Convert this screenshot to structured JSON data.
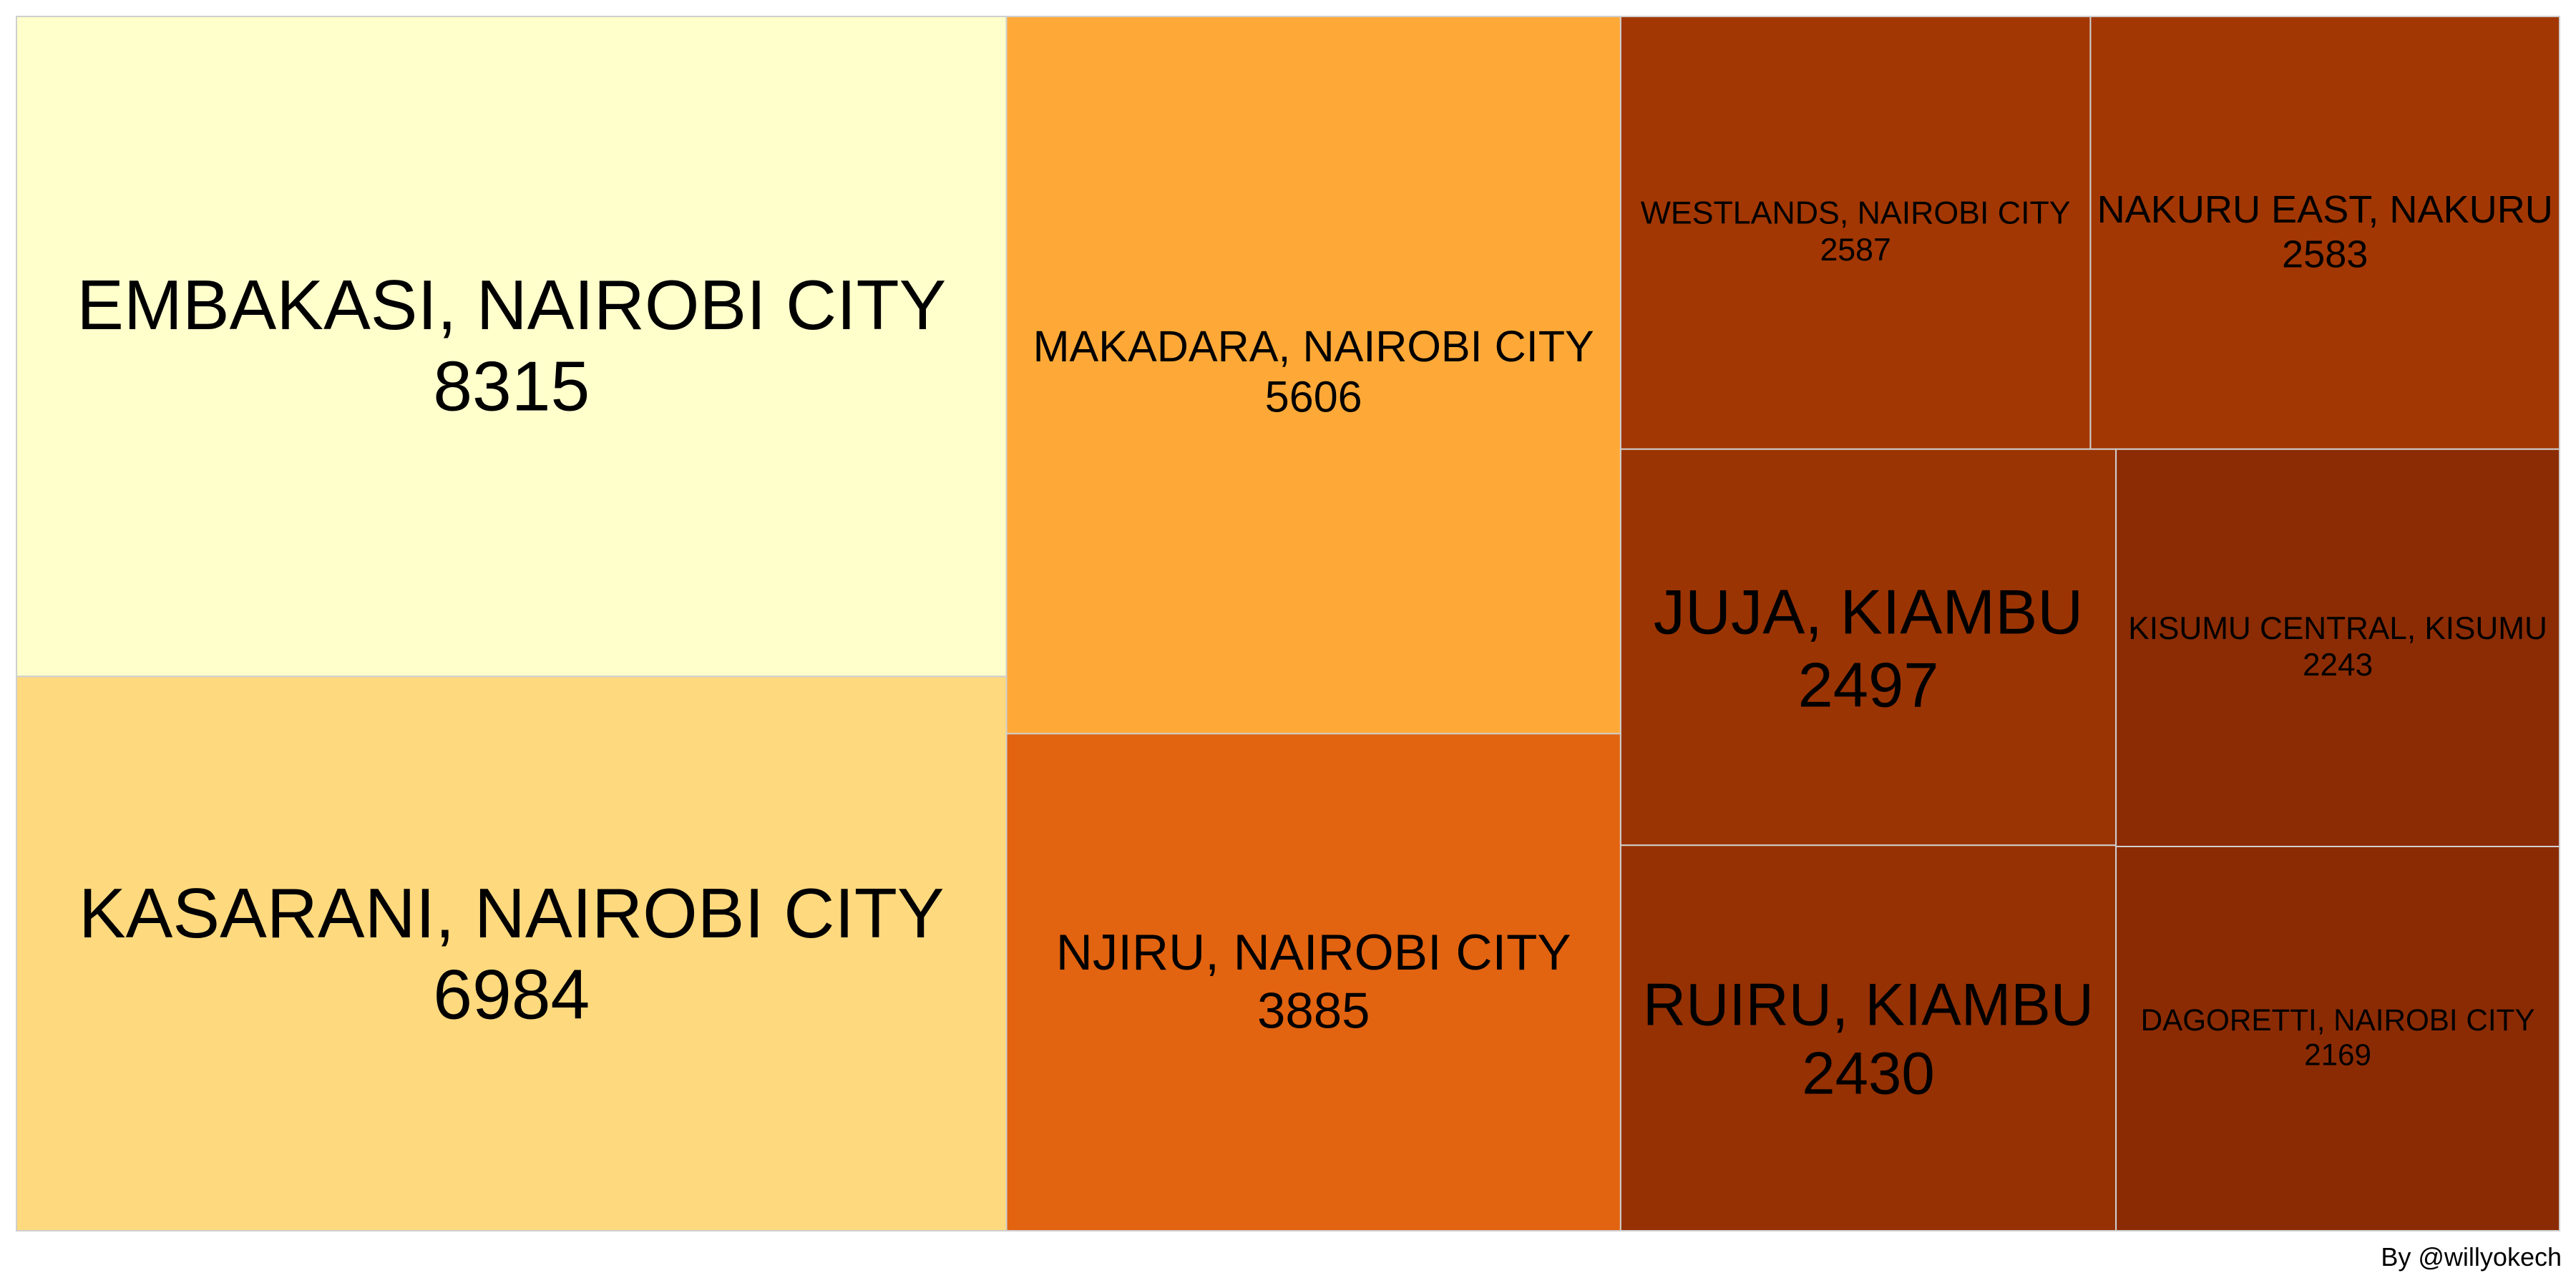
{
  "chart_data": {
    "type": "treemap",
    "title": "",
    "items": [
      {
        "label": "EMBAKASI, NAIROBI CITY",
        "value": 8315,
        "color": "#FFFFCC"
      },
      {
        "label": "KASARANI, NAIROBI CITY",
        "value": 6984,
        "color": "#FED97E"
      },
      {
        "label": "MAKADARA, NAIROBI CITY",
        "value": 5606,
        "color": "#FEA937"
      },
      {
        "label": "NJIRU, NAIROBI CITY",
        "value": 3885,
        "color": "#E26310"
      },
      {
        "label": "WESTLANDS, NAIROBI CITY",
        "value": 2587,
        "color": "#A23703"
      },
      {
        "label": "NAKURU EAST, NAKURU",
        "value": 2583,
        "color": "#A23703"
      },
      {
        "label": "JUJA, KIAMBU",
        "value": 2497,
        "color": "#9B3403"
      },
      {
        "label": "RUIRU, KIAMBU",
        "value": 2430,
        "color": "#963103"
      },
      {
        "label": "KISUMU CENTRAL, KISUMU",
        "value": 2243,
        "color": "#8C2C04"
      },
      {
        "label": "DAGORETTI, NAIROBI CITY",
        "value": 2169,
        "color": "#8B2B04"
      }
    ]
  },
  "credit": "By @willyokech"
}
